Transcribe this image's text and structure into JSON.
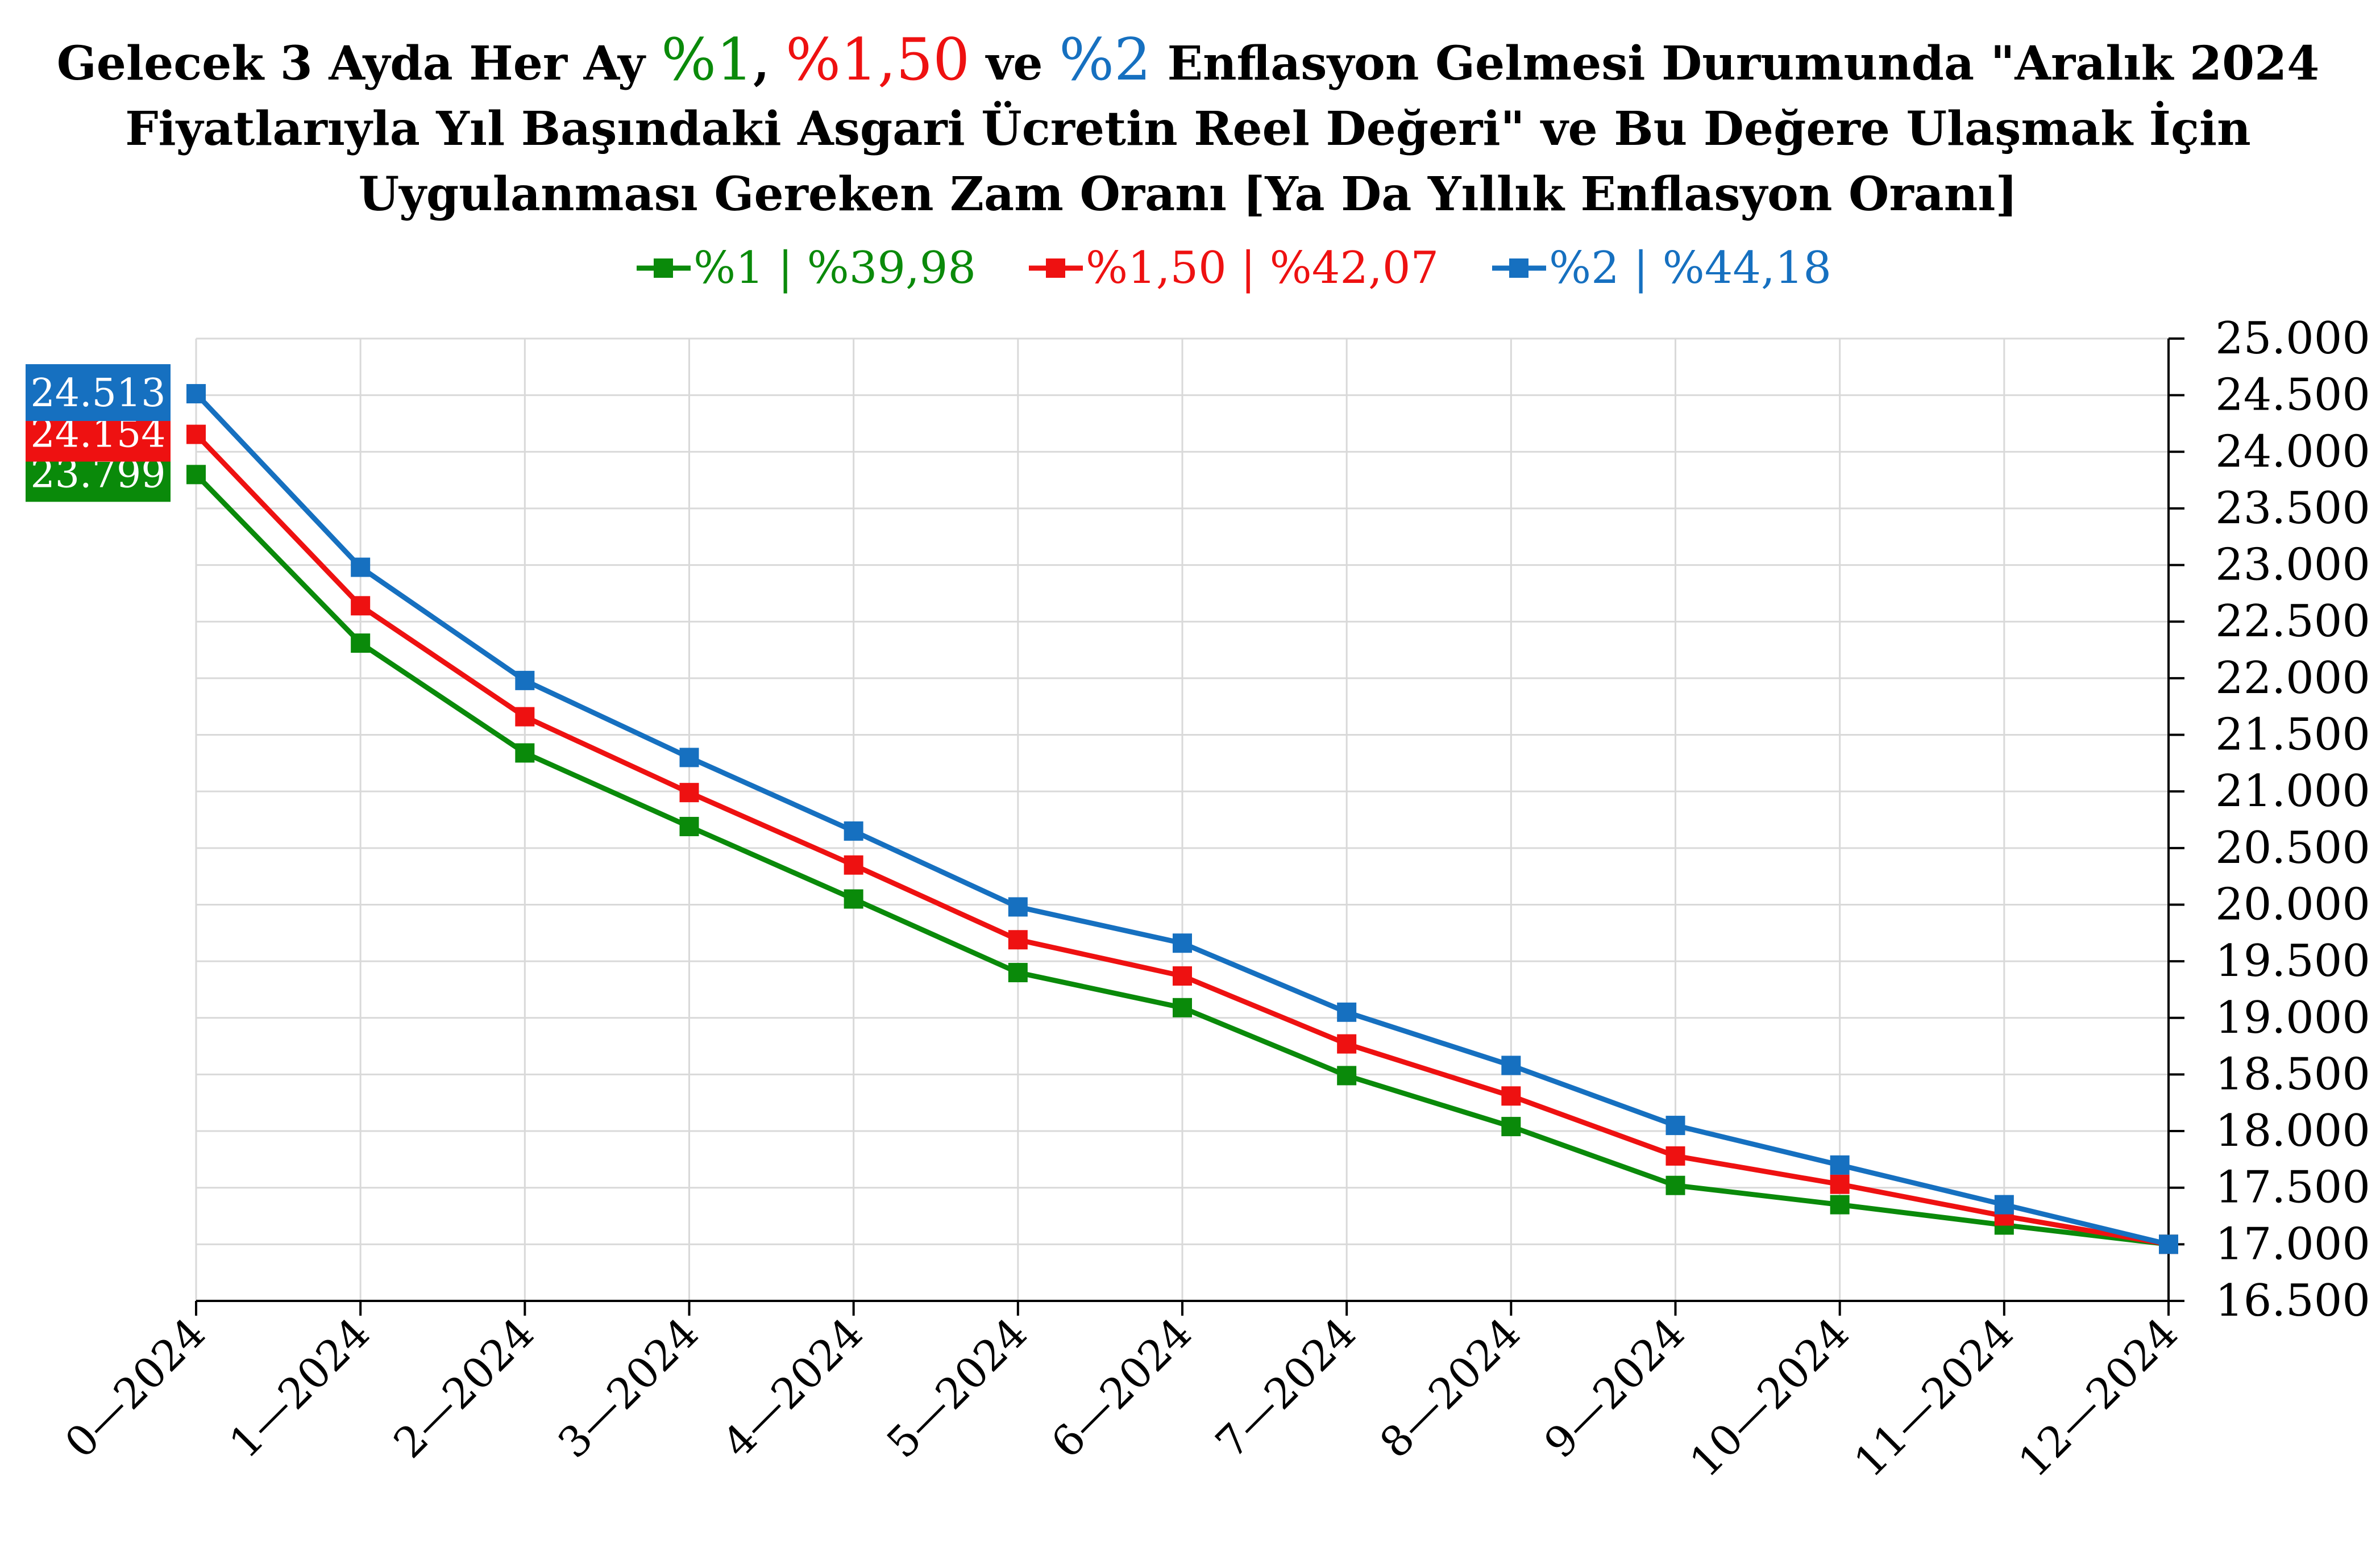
{
  "chart_data": {
    "type": "line",
    "title_lines": [
      [
        {
          "text": "Gelecek 3 Ayda Her Ay ",
          "color": "#000000"
        },
        {
          "text": "%1",
          "color": "#0a8a0a",
          "big": true
        },
        {
          "text": ", ",
          "color": "#000000"
        },
        {
          "text": "%1,50",
          "color": "#ee1111",
          "big": true
        },
        {
          "text": " ve ",
          "color": "#000000"
        },
        {
          "text": "%2",
          "color": "#1670c0",
          "big": true
        },
        {
          "text": " Enflasyon Gelmesi Durumunda \"Aralık 2024",
          "color": "#000000"
        }
      ],
      [
        {
          "text": "Fiyatlarıyla Yıl Başındaki Asgari Ücretin Reel Değeri\" ve Bu Değere Ulaşmak İçin",
          "color": "#000000"
        }
      ],
      [
        {
          "text": "Uygulanması Gereken Zam Oranı [Ya Da Yıllık Enflasyon Oranı]",
          "color": "#000000"
        }
      ]
    ],
    "categories": [
      "0—2024",
      "1—2024",
      "2—2024",
      "3—2024",
      "4—2024",
      "5—2024",
      "6—2024",
      "7—2024",
      "8—2024",
      "9—2024",
      "10—2024",
      "11—2024",
      "12—2024"
    ],
    "series": [
      {
        "name": "%1 | %39,98",
        "color": "#0a8a0a",
        "values": [
          23799,
          22310,
          21340,
          20690,
          20050,
          19400,
          19090,
          18490,
          18040,
          17520,
          17350,
          17170,
          17000
        ],
        "start_label": "23.799"
      },
      {
        "name": "%1,50 | %42,07",
        "color": "#ee1111",
        "values": [
          24154,
          22640,
          21660,
          20990,
          20350,
          19690,
          19370,
          18770,
          18310,
          17780,
          17530,
          17250,
          17000
        ],
        "start_label": "24.154"
      },
      {
        "name": "%2 | %44,18",
        "color": "#1670c0",
        "values": [
          24513,
          22980,
          21980,
          21300,
          20650,
          19980,
          19660,
          19050,
          18580,
          18050,
          17700,
          17350,
          17000
        ],
        "start_label": "24.513"
      }
    ],
    "y_ticks": [
      "25.000",
      "24.500",
      "24.000",
      "23.500",
      "23.000",
      "22.500",
      "22.000",
      "21.500",
      "21.000",
      "20.500",
      "20.000",
      "19.500",
      "19.000",
      "18.500",
      "18.000",
      "17.500",
      "17.000",
      "16.500"
    ],
    "ylim": [
      16500,
      25000
    ],
    "y_axis_side": "right",
    "grid": true,
    "legend_position": "top"
  }
}
